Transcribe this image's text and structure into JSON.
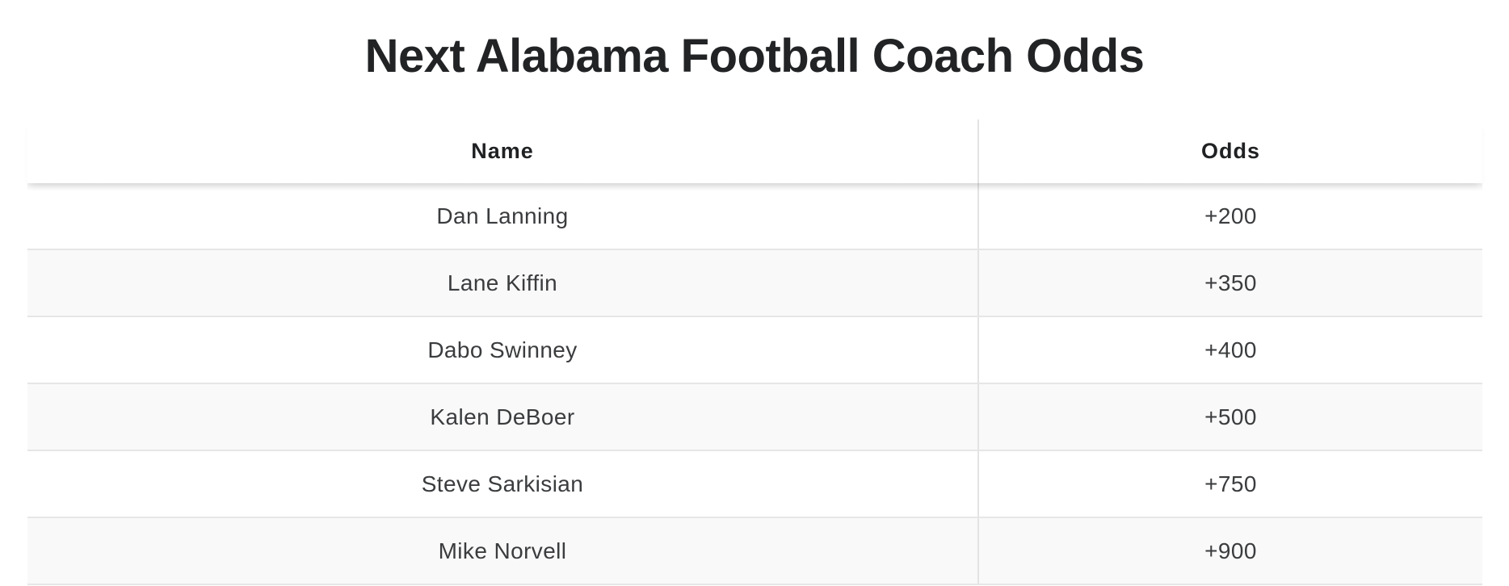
{
  "page": {
    "title": "Next Alabama Football Coach Odds"
  },
  "table": {
    "headers": {
      "name": "Name",
      "odds": "Odds"
    },
    "rows": [
      {
        "name": "Dan Lanning",
        "odds": "+200"
      },
      {
        "name": "Lane Kiffin",
        "odds": "+350"
      },
      {
        "name": "Dabo Swinney",
        "odds": "+400"
      },
      {
        "name": "Kalen DeBoer",
        "odds": "+500"
      },
      {
        "name": "Steve Sarkisian",
        "odds": "+750"
      },
      {
        "name": "Mike Norvell",
        "odds": "+900"
      }
    ]
  },
  "colors": {
    "text": "#222426",
    "row_alt": "#f9f9f9",
    "border": "#e6e6e6"
  }
}
